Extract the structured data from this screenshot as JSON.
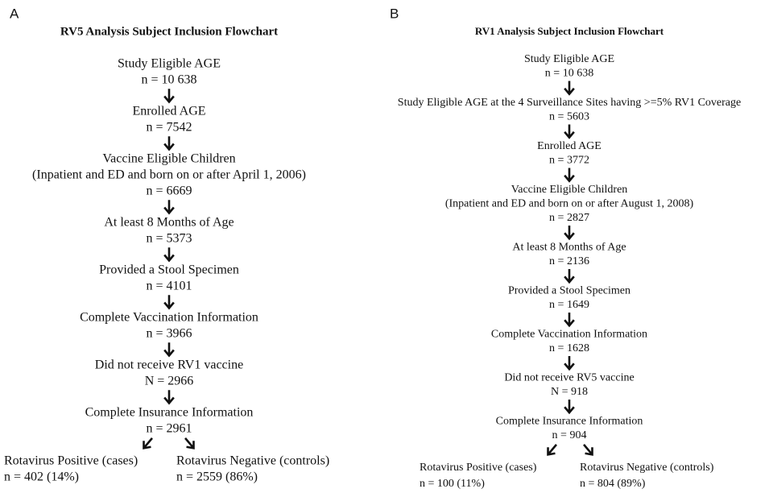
{
  "panels": [
    {
      "letter": "A",
      "title": "RV5 Analysis Subject Inclusion Flowchart",
      "steps": [
        {
          "label": [
            "Study Eligible AGE"
          ],
          "count": "n = 10 638"
        },
        {
          "label": [
            "Enrolled AGE"
          ],
          "count": "n = 7542"
        },
        {
          "label": [
            "Vaccine Eligible Children",
            "(Inpatient and ED and born on or after April 1, 2006)"
          ],
          "count": "n = 6669"
        },
        {
          "label": [
            "At least 8 Months of Age"
          ],
          "count": "n = 5373"
        },
        {
          "label": [
            "Provided a Stool Specimen"
          ],
          "count": "n = 4101"
        },
        {
          "label": [
            "Complete Vaccination Information"
          ],
          "count": "n = 3966"
        },
        {
          "label": [
            "Did not receive RV1 vaccine"
          ],
          "count": "N = 2966"
        },
        {
          "label": [
            "Complete Insurance Information"
          ],
          "count": "n = 2961"
        }
      ],
      "branches": [
        {
          "label": "Rotavirus Positive (cases)",
          "count": "n = 402 (14%)"
        },
        {
          "label": "Rotavirus Negative (controls)",
          "count": "n = 2559 (86%)"
        }
      ]
    },
    {
      "letter": "B",
      "title": "RV1 Analysis Subject Inclusion Flowchart",
      "steps": [
        {
          "label": [
            "Study Eligible AGE"
          ],
          "count": "n = 10 638"
        },
        {
          "label": [
            "Study Eligible AGE at the 4 Surveillance Sites having >=5% RV1 Coverage"
          ],
          "count": "n = 5603"
        },
        {
          "label": [
            "Enrolled AGE"
          ],
          "count": "n = 3772"
        },
        {
          "label": [
            "Vaccine Eligible Children",
            "(Inpatient and ED and born on or after August 1, 2008)"
          ],
          "count": "n = 2827"
        },
        {
          "label": [
            "At least 8 Months of Age"
          ],
          "count": "n = 2136"
        },
        {
          "label": [
            "Provided a Stool Specimen"
          ],
          "count": "n = 1649"
        },
        {
          "label": [
            "Complete Vaccination Information"
          ],
          "count": "n = 1628"
        },
        {
          "label": [
            "Did not receive RV5 vaccine"
          ],
          "count": "N = 918"
        },
        {
          "label": [
            "Complete Insurance Information"
          ],
          "count": "n = 904"
        }
      ],
      "branches": [
        {
          "label": "Rotavirus Positive (cases)",
          "count": "n = 100 (11%)"
        },
        {
          "label": "Rotavirus Negative (controls)",
          "count": "n = 804 (89%)"
        }
      ]
    }
  ]
}
